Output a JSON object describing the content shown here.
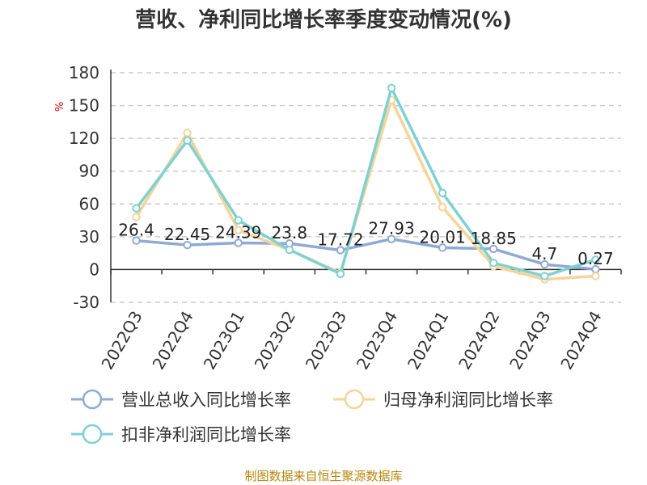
{
  "chart_data": {
    "type": "line",
    "title": "营收、净利同比增长率季度变动情况(%)",
    "ylabel": "%",
    "categories": [
      "2022Q3",
      "2022Q4",
      "2023Q1",
      "2023Q2",
      "2023Q3",
      "2023Q4",
      "2024Q1",
      "2024Q2",
      "2024Q3",
      "2024Q4"
    ],
    "ylim": [
      -30,
      180
    ],
    "yticks": [
      "180",
      "150",
      "120",
      "90",
      "60",
      "30",
      "0",
      "-30"
    ],
    "grid": "horizontal dashed",
    "legend_position": "bottom",
    "series": [
      {
        "name": "营业总收入同比增长率",
        "color": "#8fa9d6",
        "values": [
          26.4,
          22.45,
          24.39,
          23.8,
          17.72,
          27.93,
          20.01,
          18.85,
          4.7,
          0.27
        ],
        "data_labels": [
          "26.4",
          "22.45",
          "24.39",
          "23.8",
          "17.72",
          "27.93",
          "20.01",
          "18.85",
          "4.7",
          "0.27"
        ]
      },
      {
        "name": "归母净利润同比增长率",
        "color": "#f5d49a",
        "values": [
          48,
          125,
          36,
          18,
          -3,
          155,
          57,
          3,
          -9,
          -6
        ]
      },
      {
        "name": "扣非净利润同比增长率",
        "color": "#7fd1d1",
        "values": [
          56,
          118,
          45,
          18,
          -4,
          166,
          70,
          6,
          -6,
          9
        ]
      }
    ],
    "source": "制图数据来自恒生聚源数据库"
  }
}
